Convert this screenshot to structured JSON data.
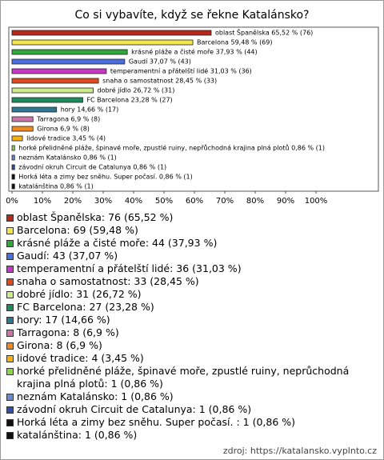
{
  "chart_data": {
    "type": "bar",
    "orientation": "horizontal",
    "title": "Co si vybavíte, když se řekne Katalánsko?",
    "categories": [
      "oblast Španělska",
      "Barcelona",
      "krásné pláže a čisté moře",
      "Gaudí",
      "temperamentní a přátelští lidé",
      "snaha o samostatnost",
      "dobré jídlo",
      "FC Barcelona",
      "hory",
      "Tarragona",
      "Girona",
      "lidové tradice",
      "horké přelidněné pláže, špinavé moře, zpustlé ruiny, nepřůchodná krajina plná plotů",
      "neznám Katalánsko",
      "závodní okruh Circuit de Catalunya",
      "Horká léta a zimy bez sněhu. Super počasí. ",
      "katalánština"
    ],
    "values": [
      65.52,
      59.48,
      37.93,
      37.07,
      31.03,
      28.45,
      26.72,
      23.28,
      14.66,
      6.9,
      6.9,
      3.45,
      0.86,
      0.86,
      0.86,
      0.86,
      0.86
    ],
    "value_labels": [
      "oblast Španělska 65,52 % (76)",
      "Barcelona 59,48 % (69)",
      "krásné pláže a čisté moře 37,93 % (44)",
      "Gaudí 37,07 % (43)",
      "temperamentní a přátelští lidé 31,03 % (36)",
      "snaha o samostatnost 28,45 % (33)",
      "dobré jídlo 26,72 % (31)",
      "FC Barcelona 23,28 % (27)",
      "hory 14,66 % (17)",
      "Tarragona 6,9 % (8)",
      "Girona 6,9 % (8)",
      "lidové tradice 3,45 % (4)",
      "horké přelidněné pláže, špinavé moře, zpustlé ruiny, nepřůchodná krajina plná plotů 0,86 % (1)",
      "neznám Katalánsko 0,86 % (1)",
      "závodní okruh Circuit de Catalunya 0,86 % (1)",
      "Horká léta a zimy bez sněhu. Super počasí.  0,86 % (1)",
      "katalánština 0,86 % (1)"
    ],
    "colors": [
      "#b8281a",
      "#f2e64a",
      "#2fa83a",
      "#4a6ee0",
      "#c838c8",
      "#e04a20",
      "#cdeb8a",
      "#1f8a5e",
      "#2e7890",
      "#c877a8",
      "#ee8a20",
      "#f8b010",
      "#8ad848",
      "#6a8ad0",
      "#3050a8",
      "#111111",
      "#111111"
    ],
    "legend": [
      "oblast Španělska: 76 (65,52 %)",
      "Barcelona: 69 (59,48 %)",
      "krásné pláže a čisté moře: 44 (37,93 %)",
      "Gaudí: 43 (37,07 %)",
      "temperamentní a přátelští lidé: 36 (31,03 %)",
      "snaha o samostatnost: 33 (28,45 %)",
      "dobré jídlo: 31 (26,72 %)",
      "FC Barcelona: 27 (23,28 %)",
      "hory: 17 (14,66 %)",
      "Tarragona: 8 (6,9 %)",
      "Girona: 8 (6,9 %)",
      "lidové tradice: 4 (3,45 %)",
      "horké přelidněné pláže, špinavé moře, zpustlé ruiny, neprůchodná krajina plná plotů: 1 (0,86 %)",
      "neznám Katalánsko: 1 (0,86 %)",
      "závodní okruh Circuit de Catalunya: 1 (0,86 %)",
      "Horká léta a zimy bez sněhu. Super počasí. : 1 (0,86 %)",
      "katalánština: 1 (0,86 %)"
    ],
    "xlim": [
      0,
      120
    ],
    "xticks": [
      {
        "value": 0,
        "label": "0%"
      },
      {
        "value": 10,
        "label": "10%"
      },
      {
        "value": 20,
        "label": "20%"
      },
      {
        "value": 30,
        "label": "30%"
      },
      {
        "value": 40,
        "label": "40%"
      },
      {
        "value": 50,
        "label": "50%"
      },
      {
        "value": 60,
        "label": "60%"
      },
      {
        "value": 70,
        "label": "70%"
      },
      {
        "value": 80,
        "label": "80%"
      },
      {
        "value": 90,
        "label": "90%"
      },
      {
        "value": 100,
        "label": "100%"
      }
    ],
    "source": "zdroj: https://katalansko.vyplnto.cz"
  }
}
